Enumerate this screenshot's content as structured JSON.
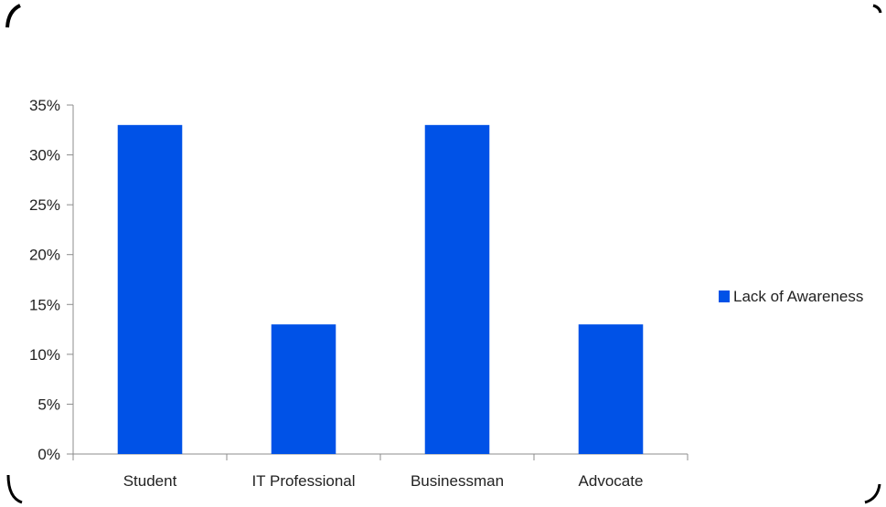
{
  "chart_data": {
    "type": "bar",
    "categories": [
      "Student",
      "IT Professional",
      "Businessman",
      "Advocate"
    ],
    "series": [
      {
        "name": "Lack of Awareness",
        "values": [
          33,
          13,
          33,
          13
        ],
        "color": "#0052e7"
      }
    ],
    "y_tick_labels": [
      "0%",
      "5%",
      "10%",
      "15%",
      "20%",
      "25%",
      "30%",
      "35%"
    ],
    "ylim": [
      0,
      35
    ],
    "y_tick_step": 5,
    "y_unit": "%",
    "grid": false,
    "legend": {
      "position": "right"
    }
  },
  "colors": {
    "bar": "#0052e7",
    "axis": "#8c8c8c",
    "frame": "#000000",
    "text": "#222222"
  }
}
